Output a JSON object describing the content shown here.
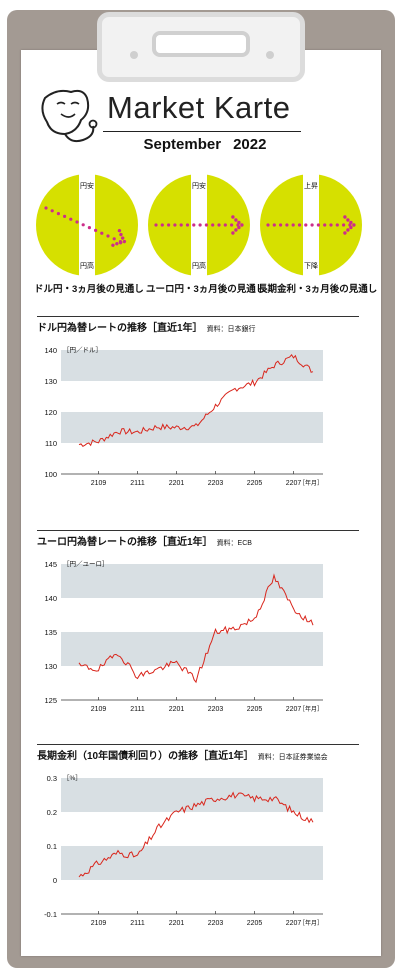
{
  "header": {
    "title": "Market Karte",
    "month": "September",
    "year": "2022"
  },
  "outlooks": [
    {
      "label": "ドル円・3ヵ月後の見通し",
      "top": "円安",
      "bottom": "円高",
      "direction": "down"
    },
    {
      "label": "ユーロ円・3ヵ月後の見通し",
      "top": "円安",
      "bottom": "円高",
      "direction": "flat"
    },
    {
      "label": "長期金利・3ヵ月後の見通し",
      "top": "上昇",
      "bottom": "下降",
      "direction": "flat"
    }
  ],
  "colors": {
    "circle": "#d6e000",
    "arrow": "#cc2e8a",
    "band": "#d8dfe3",
    "line": "#d9261c",
    "board": "#a39a93"
  },
  "chart_data": [
    {
      "type": "line",
      "title": "ドル円為替レートの推移［直近1年］",
      "source": "資料：日本銀行",
      "unit_label": "［円／ドル］",
      "period_label": "［年月］",
      "ylim": [
        100,
        140
      ],
      "yticks": [
        100,
        110,
        120,
        130,
        140
      ],
      "bands": [
        [
          130,
          140
        ],
        [
          110,
          120
        ]
      ],
      "xticks": [
        "2109",
        "2111",
        "2201",
        "2203",
        "2205",
        "2207"
      ],
      "x_months": [
        0,
        1,
        2,
        3,
        4,
        5,
        6,
        7,
        8,
        9,
        10,
        11,
        12
      ],
      "values": [
        109.5,
        110.5,
        113.8,
        113.5,
        115.2,
        115.0,
        115.3,
        122.0,
        127.5,
        129.5,
        135.0,
        138.0,
        133.0
      ]
    },
    {
      "type": "line",
      "title": "ユーロ円為替レートの推移［直近1年］",
      "source": "資料：ECB",
      "unit_label": "［円／ユーロ］",
      "period_label": "［年月］",
      "ylim": [
        125,
        145
      ],
      "yticks": [
        125,
        130,
        135,
        140,
        145
      ],
      "bands": [
        [
          140,
          145
        ],
        [
          130,
          135
        ]
      ],
      "xticks": [
        "2109",
        "2111",
        "2201",
        "2203",
        "2205",
        "2207"
      ],
      "x_months": [
        0,
        1,
        2,
        3,
        4,
        5,
        6,
        7,
        8,
        9,
        10,
        11,
        12
      ],
      "values": [
        130.0,
        129.5,
        132.0,
        128.5,
        129.5,
        130.5,
        128.0,
        135.0,
        135.5,
        137.0,
        143.0,
        138.5,
        136.0
      ]
    },
    {
      "type": "line",
      "title": "長期金利（10年国債利回り）の推移［直近1年］",
      "source": "資料：日本証券業協会",
      "unit_label": "［%］",
      "period_label": "［年月］",
      "ylim": [
        -0.1,
        0.3
      ],
      "yticks": [
        -0.1,
        0,
        0.1,
        0.2,
        0.3
      ],
      "ytick_labels": [
        "-0.1",
        "0",
        "0.1",
        "0.2",
        "0.3"
      ],
      "bands": [
        [
          0.2,
          0.3
        ],
        [
          0,
          0.1
        ]
      ],
      "xticks": [
        "2109",
        "2111",
        "2201",
        "2203",
        "2205",
        "2207"
      ],
      "x_months": [
        0,
        1,
        2,
        3,
        4,
        5,
        6,
        7,
        8,
        9,
        10,
        11,
        12
      ],
      "values": [
        0.01,
        0.05,
        0.08,
        0.07,
        0.15,
        0.2,
        0.22,
        0.24,
        0.25,
        0.24,
        0.24,
        0.2,
        0.17
      ]
    }
  ]
}
